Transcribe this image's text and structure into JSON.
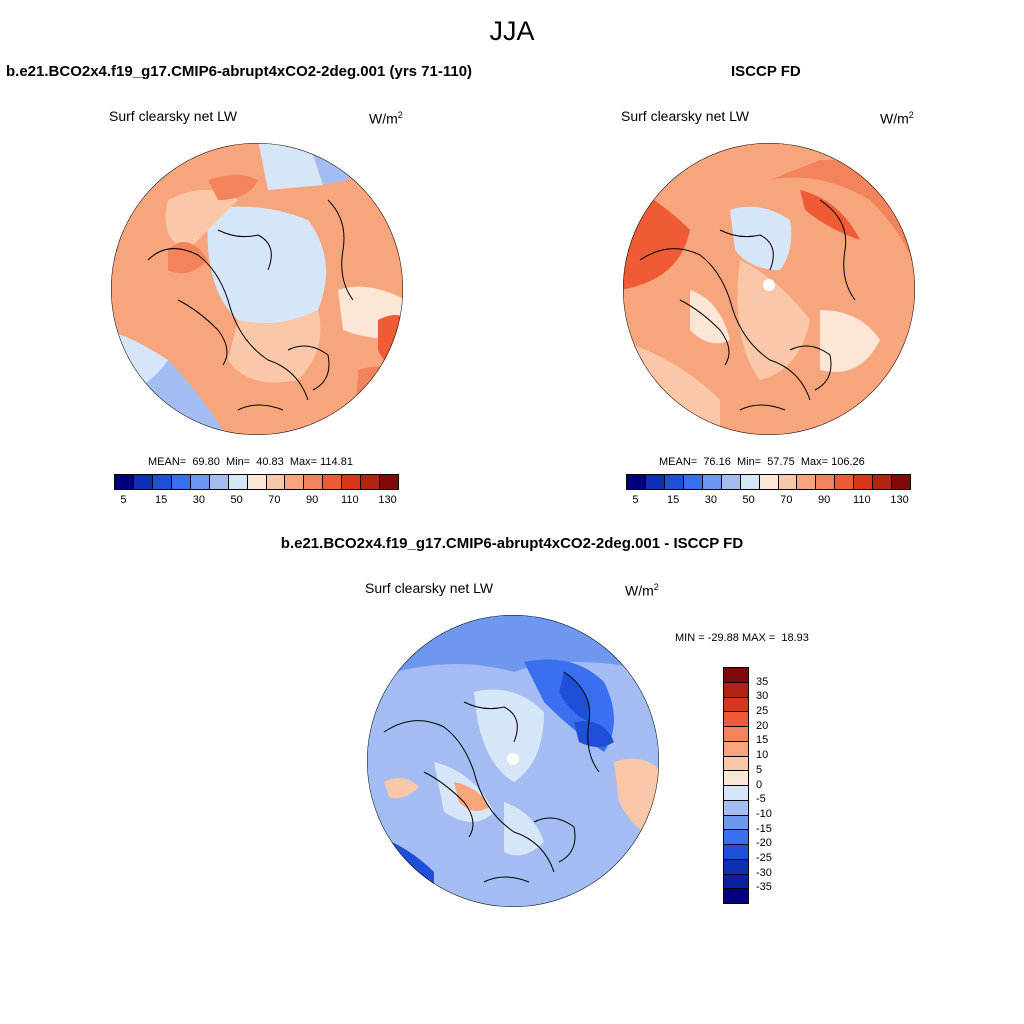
{
  "figure": {
    "title": "JJA"
  },
  "panel_model": {
    "title": "b.e21.BCO2x4.f19_g17.CMIP6-abrupt4xCO2-2deg.001 (yrs 71-110)",
    "variable": "Surf clearsky net LW",
    "units_base": "W/m",
    "units_exp": "2",
    "stats": "MEAN=  69.80  Min=  40.83  Max= 114.81"
  },
  "panel_obs": {
    "title": "ISCCP FD",
    "variable": "Surf clearsky net LW",
    "units_base": "W/m",
    "units_exp": "2",
    "stats": "MEAN=  76.16  Min=  57.75  Max= 106.26"
  },
  "panel_diff": {
    "title": "b.e21.BCO2x4.f19_g17.CMIP6-abrupt4xCO2-2deg.001 - ISCCP FD",
    "variable": "Surf clearsky net LW",
    "units_base": "W/m",
    "units_exp": "2",
    "stats": "MIN = -29.88 MAX =  18.93"
  },
  "colorbar_abs": {
    "colors": [
      "#00007f",
      "#0d2fb2",
      "#1f4fd9",
      "#3a6ff0",
      "#6e98ef",
      "#a3bdf2",
      "#d7e5f8",
      "#fde6d6",
      "#fbc7a9",
      "#f7a57d",
      "#f3835a",
      "#ee5b34",
      "#d8361b",
      "#b22312",
      "#7f0c08"
    ],
    "tick_labels": [
      "5",
      "15",
      "30",
      "50",
      "70",
      "90",
      "110",
      "130"
    ]
  },
  "colorbar_diff": {
    "colors": [
      "#7f0c08",
      "#b22312",
      "#d8361b",
      "#ee5b34",
      "#f3835a",
      "#f7a57d",
      "#fbc7a9",
      "#fde6d6",
      "#d7e5f8",
      "#a3bdf2",
      "#6e98ef",
      "#3a6ff0",
      "#1f4fd9",
      "#0d2fb2",
      "#0b1fa0",
      "#00007f"
    ],
    "labels": [
      "35",
      "30",
      "25",
      "20",
      "15",
      "10",
      "5",
      "0",
      "-5",
      "-10",
      "-15",
      "-20",
      "-25",
      "-30",
      "-35"
    ]
  }
}
